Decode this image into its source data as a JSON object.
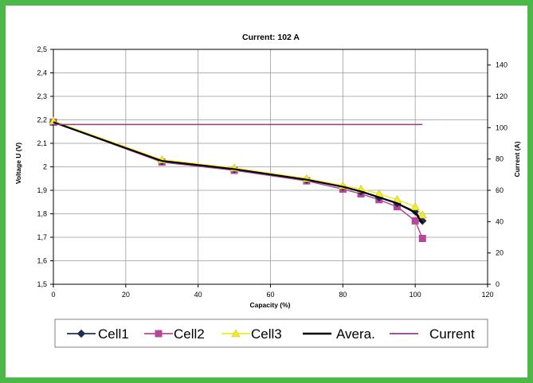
{
  "chart_data": {
    "type": "line",
    "title": "Current: 102 A",
    "xlabel": "Capacity (%)",
    "ylabel": "Voltage U (V)",
    "y2label": "Current (A)",
    "xlim": [
      0,
      120
    ],
    "ylim": [
      1.5,
      2.5
    ],
    "y2lim": [
      0,
      150
    ],
    "xticks": [
      "0",
      "20",
      "40",
      "60",
      "80",
      "100",
      "120"
    ],
    "yticks": [
      "1,5",
      "1,6",
      "1,7",
      "1,8",
      "1,9",
      "2",
      "2,1",
      "2,2",
      "2,3",
      "2,4",
      "2,5"
    ],
    "y2ticks": [
      "0",
      "20",
      "40",
      "60",
      "80",
      "100",
      "120",
      "140"
    ],
    "grid": true,
    "legend_position": "bottom",
    "series": [
      {
        "name": "Cell1",
        "axis": "left",
        "color": "#1f2d5a",
        "marker": "diamond",
        "x": [
          0,
          30,
          50,
          70,
          80,
          85,
          90,
          95,
          100,
          102
        ],
        "y": [
          2.19,
          2.025,
          1.99,
          1.945,
          1.915,
          1.895,
          1.87,
          1.845,
          1.81,
          1.77
        ]
      },
      {
        "name": "Cell2",
        "axis": "left",
        "color": "#b5469b",
        "marker": "square",
        "x": [
          0,
          30,
          50,
          70,
          80,
          85,
          90,
          95,
          100,
          102
        ],
        "y": [
          2.19,
          2.02,
          1.985,
          1.94,
          1.905,
          1.885,
          1.86,
          1.83,
          1.77,
          1.695
        ]
      },
      {
        "name": "Cell3",
        "axis": "left",
        "color": "#f0ec2a",
        "marker": "triangle",
        "x": [
          0,
          30,
          50,
          70,
          80,
          85,
          90,
          95,
          100,
          102
        ],
        "y": [
          2.195,
          2.03,
          1.995,
          1.95,
          1.92,
          1.905,
          1.885,
          1.86,
          1.83,
          1.795
        ]
      },
      {
        "name": "Avera.",
        "axis": "left",
        "color": "#000000",
        "marker": "none",
        "x": [
          0,
          30,
          50,
          70,
          80,
          85,
          90,
          95,
          100,
          102
        ],
        "y": [
          2.19,
          2.025,
          1.99,
          1.945,
          1.915,
          1.895,
          1.87,
          1.845,
          1.805,
          1.76
        ]
      },
      {
        "name": "Current",
        "axis": "right",
        "color": "#8e3b8c",
        "marker": "none",
        "x": [
          0,
          102
        ],
        "y": [
          102,
          102
        ]
      }
    ]
  }
}
